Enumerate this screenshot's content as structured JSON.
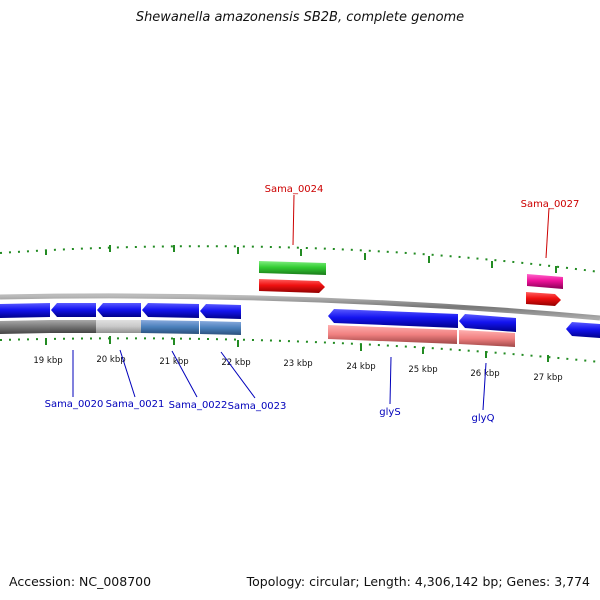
{
  "title": "Shewanella amazonensis SB2B, complete genome",
  "accession": "Accession: NC_008700",
  "topology": "Topology: circular; Length: 4,306,142 bp; Genes: 3,774",
  "ticks": [
    "19 kbp",
    "20 kbp",
    "21 kbp",
    "22 kbp",
    "23 kbp",
    "24 kbp",
    "25 kbp",
    "26 kbp",
    "27 kbp"
  ],
  "labels_top": [
    "Sama_0024",
    "Sama_0027"
  ],
  "labels_bottom": [
    "Sama_0020",
    "Sama_0021",
    "Sama_0022",
    "Sama_0023",
    "glyS",
    "glyQ"
  ],
  "colors": {
    "forward_cds": "#1010ee",
    "green_feature": "#33cc33",
    "red_feature": "#ee1111",
    "pink_feature": "#ee1199",
    "backbone": "#888888",
    "tick_marks": "#228b22",
    "label_top": "#cc0000",
    "label_bottom": "#0000bb"
  }
}
